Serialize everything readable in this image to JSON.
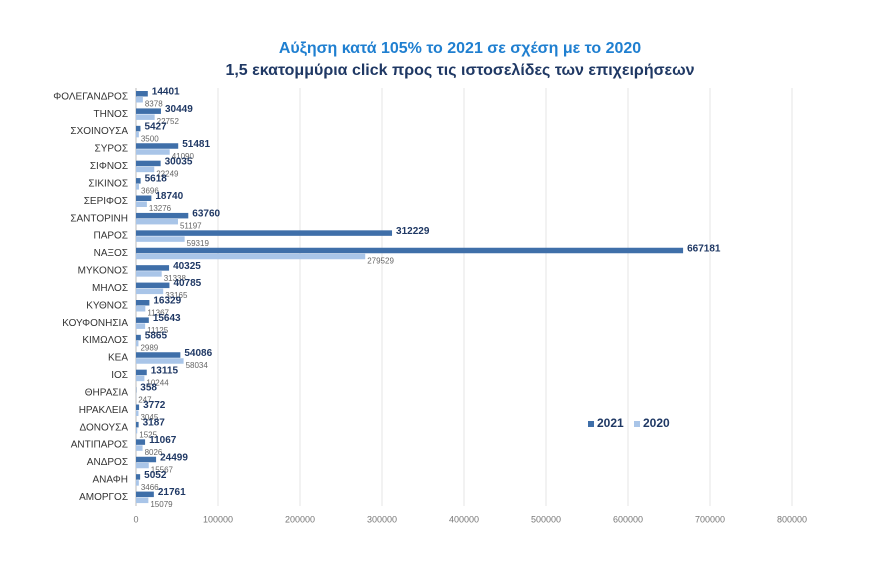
{
  "chart_data": {
    "type": "bar",
    "orientation": "horizontal",
    "title": "Αύξηση κατά 105% το 2021 σε σχέση με το 2020",
    "subtitle": "1,5 εκατομμύρια click προς τις ιστοσελίδες των επιχειρήσεων",
    "categories": [
      "ΦΟΛΕΓΑΝΔΡΟΣ",
      "ΤΗΝΟΣ",
      "ΣΧΟΙΝΟΥΣΑ",
      "ΣΥΡΟΣ",
      "ΣΙΦΝΟΣ",
      "ΣΙΚΙΝΟΣ",
      "ΣΕΡΙΦΟΣ",
      "ΣΑΝΤΟΡΙΝΗ",
      "ΠΑΡΟΣ",
      "ΝΑΞΟΣ",
      "ΜΥΚΟΝΟΣ",
      "ΜΗΛΟΣ",
      "ΚΥΘΝΟΣ",
      "ΚΟΥΦΟΝΗΣΙΑ",
      "ΚΙΜΩΛΟΣ",
      "ΚΕΑ",
      "ΙΟΣ",
      "ΘΗΡΑΣΙΑ",
      "ΗΡΑΚΛΕΙΑ",
      "ΔΟΝΟΥΣΑ",
      "ΑΝΤΙΠΑΡΟΣ",
      "ΑΝΔΡΟΣ",
      "ΑΝΑΦΗ",
      "ΑΜΟΡΓΟΣ"
    ],
    "series": [
      {
        "name": "2021",
        "color": "#3f6fa9",
        "values": [
          14401,
          30449,
          5427,
          51481,
          30035,
          5618,
          18740,
          63760,
          312229,
          667181,
          40325,
          40785,
          16329,
          15643,
          5865,
          54086,
          13115,
          358,
          3772,
          3187,
          11067,
          24499,
          5052,
          21761
        ]
      },
      {
        "name": "2020",
        "color": "#a9c5e8",
        "values": [
          8378,
          22752,
          3500,
          41090,
          22249,
          3696,
          13276,
          51197,
          59319,
          279529,
          31338,
          33165,
          11367,
          11125,
          2989,
          58034,
          10244,
          247,
          3045,
          1525,
          8026,
          15567,
          3466,
          15079
        ]
      }
    ],
    "xlim": [
      0,
      800000
    ],
    "xticks": [
      0,
      100000,
      200000,
      300000,
      400000,
      500000,
      600000,
      700000,
      800000
    ],
    "grid": true,
    "legend_position": "right"
  }
}
